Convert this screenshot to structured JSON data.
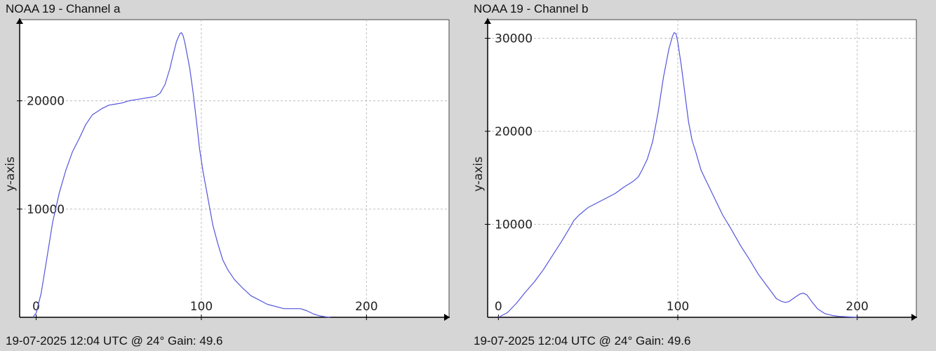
{
  "chart_data": [
    {
      "type": "line",
      "title": "NOAA 19 - Channel a",
      "footer": "19-07-2025 12:04 UTC @ 24° Gain: 49.6",
      "xlabel": "",
      "ylabel": "y-axis",
      "xlim": [
        -10,
        250
      ],
      "ylim": [
        0,
        27500
      ],
      "xticks": [
        0,
        100,
        200
      ],
      "yticks": [
        10000,
        20000
      ],
      "x_tick_labels": [
        "0",
        "100",
        "200"
      ],
      "y_tick_labels": [
        "10000",
        "20000"
      ],
      "grid": true,
      "line_color": "#5555dd",
      "series": [
        {
          "x": [
            -2,
            0,
            3,
            6,
            10,
            14,
            18,
            22,
            26,
            30,
            34,
            37,
            40,
            44,
            48,
            52,
            56,
            60,
            64,
            68,
            72,
            75,
            78,
            81,
            83,
            85,
            87,
            88,
            89,
            90,
            91,
            93,
            95,
            97,
            99,
            101,
            104,
            107,
            110,
            113,
            116,
            120,
            125,
            130,
            140,
            150,
            155,
            160,
            164,
            168,
            172,
            175,
            178
          ],
          "values": [
            0,
            400,
            2200,
            5000,
            8800,
            11500,
            13600,
            15300,
            16500,
            17800,
            18700,
            19000,
            19300,
            19600,
            19700,
            19800,
            20000,
            20100,
            20200,
            20300,
            20400,
            20700,
            21500,
            23000,
            24300,
            25500,
            26200,
            26300,
            26000,
            25400,
            24600,
            23000,
            20800,
            18200,
            15500,
            13500,
            11000,
            8500,
            6800,
            5300,
            4400,
            3500,
            2700,
            2000,
            1200,
            800,
            800,
            800,
            600,
            300,
            120,
            50,
            0
          ]
        }
      ]
    },
    {
      "type": "line",
      "title": "NOAA 19 - Channel b",
      "footer": "19-07-2025 12:04 UTC @ 24° Gain: 49.6",
      "xlabel": "",
      "ylabel": "y-axis",
      "xlim": [
        -6,
        233
      ],
      "ylim": [
        0,
        32000
      ],
      "xticks": [
        0,
        100,
        200
      ],
      "yticks": [
        10000,
        20000,
        30000
      ],
      "x_tick_labels": [
        "0",
        "100",
        "200"
      ],
      "y_tick_labels": [
        "10000",
        "20000",
        "30000"
      ],
      "grid": true,
      "line_color": "#5555dd",
      "series": [
        {
          "x": [
            0,
            5,
            10,
            15,
            20,
            25,
            30,
            35,
            40,
            42,
            45,
            50,
            55,
            60,
            65,
            70,
            75,
            78,
            80,
            83,
            86,
            89,
            92,
            95,
            97,
            98,
            99,
            100,
            102,
            104,
            106,
            108,
            110,
            113,
            116,
            120,
            125,
            130,
            135,
            140,
            145,
            150,
            155,
            158,
            160,
            162,
            165,
            168,
            170,
            172,
            175,
            178,
            182,
            186,
            190,
            195,
            200
          ],
          "values": [
            0,
            500,
            1500,
            2700,
            3800,
            5100,
            6600,
            8100,
            9700,
            10400,
            11000,
            11800,
            12300,
            12800,
            13300,
            14000,
            14600,
            15100,
            15800,
            17000,
            18900,
            22000,
            25800,
            28800,
            30200,
            30600,
            30500,
            29600,
            27000,
            24000,
            21000,
            19000,
            17800,
            15800,
            14600,
            13000,
            11000,
            9400,
            7700,
            6200,
            4600,
            3300,
            2000,
            1700,
            1600,
            1700,
            2100,
            2500,
            2600,
            2400,
            1600,
            900,
            400,
            200,
            100,
            50,
            0
          ]
        }
      ]
    }
  ]
}
